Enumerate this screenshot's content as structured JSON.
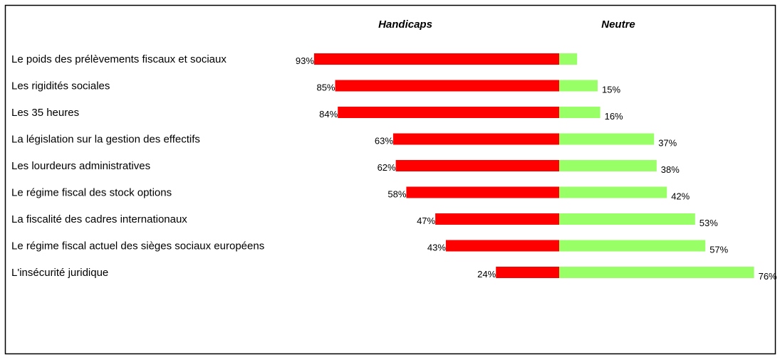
{
  "chart_data": {
    "type": "bar",
    "orientation": "horizontal-diverging",
    "title": "",
    "xlabel": "",
    "ylabel": "",
    "categories": [
      "Le poids des prélèvements fiscaux et sociaux",
      "Les rigidités sociales",
      "Les 35 heures",
      "La législation sur la gestion des effectifs",
      "Les lourdeurs administratives",
      "Le régime fiscal des stock options",
      "La fiscalité des cadres internationaux",
      "Le régime fiscal actuel des sièges sociaux européens",
      "L'insécurité juridique"
    ],
    "series": [
      {
        "name": "Handicaps",
        "color": "#ff0000",
        "values": [
          93,
          85,
          84,
          63,
          62,
          58,
          47,
          43,
          24
        ],
        "labels": [
          "93%",
          "85%",
          "84%",
          "63%",
          "62%",
          "58%",
          "47%",
          "43%",
          "24%"
        ]
      },
      {
        "name": "Neutre",
        "color": "#99ff66",
        "values": [
          7,
          15,
          16,
          37,
          38,
          42,
          53,
          57,
          76
        ],
        "labels": [
          "",
          "15%",
          "16%",
          "37%",
          "38%",
          "42%",
          "53%",
          "57%",
          "76%"
        ]
      }
    ],
    "xlim": [
      -100,
      100
    ],
    "grid": false,
    "legend": "top"
  }
}
